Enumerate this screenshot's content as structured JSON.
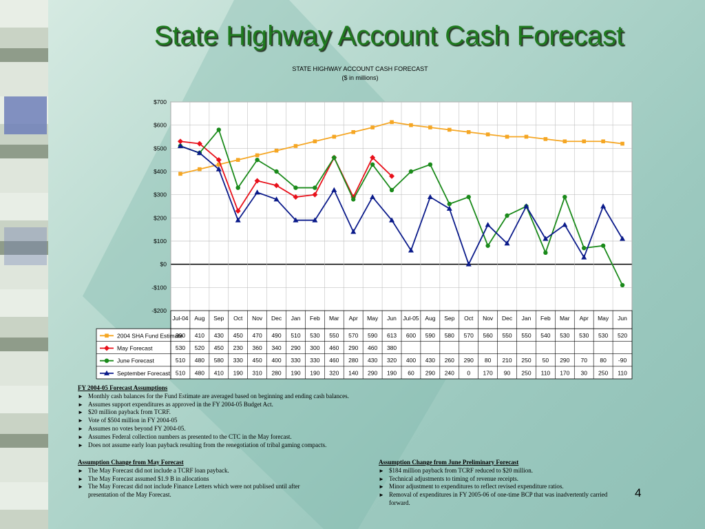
{
  "slide": {
    "title": "State Highway Account Cash Forecast",
    "page_number": "4"
  },
  "chart_data": {
    "type": "line",
    "title": "STATE HIGHWAY ACCOUNT CASH FORECAST",
    "subtitle": "($ in millions)",
    "categories": [
      "Jul-04",
      "Aug",
      "Sep",
      "Oct",
      "Nov",
      "Dec",
      "Jan",
      "Feb",
      "Mar",
      "Apr",
      "May",
      "Jun",
      "Jul-05",
      "Aug",
      "Sep",
      "Oct",
      "Nov",
      "Dec",
      "Jan",
      "Feb",
      "Mar",
      "Apr",
      "May",
      "Jun"
    ],
    "ylim": [
      -200,
      700
    ],
    "yticks": [
      -200,
      -100,
      0,
      100,
      200,
      300,
      400,
      500,
      600,
      700
    ],
    "ytick_labels": [
      "-$200",
      "-$100",
      "$0",
      "$100",
      "$200",
      "$300",
      "$400",
      "$500",
      "$600",
      "$700"
    ],
    "grid": true,
    "legend": "table-below",
    "series": [
      {
        "name": "2004 SHA Fund Estimate",
        "color": "#f5a623",
        "marker": "square",
        "values": [
          390,
          410,
          430,
          450,
          470,
          490,
          510,
          530,
          550,
          570,
          590,
          613,
          600,
          590,
          580,
          570,
          560,
          550,
          550,
          540,
          530,
          530,
          530,
          520
        ],
        "labels": [
          "390",
          "410",
          "430",
          "450",
          "470",
          "490",
          "510",
          "530",
          "550",
          "570",
          "590",
          "613",
          "600",
          "590",
          "580",
          "570",
          "560",
          "550",
          "550",
          "540",
          "530",
          "530",
          "530",
          "520"
        ]
      },
      {
        "name": "May Forecast",
        "color": "#e8101a",
        "marker": "diamond",
        "values": [
          530,
          520,
          450,
          230,
          360,
          340,
          290,
          300,
          460,
          290,
          460,
          380,
          null,
          null,
          null,
          null,
          null,
          null,
          null,
          null,
          null,
          null,
          null,
          null
        ],
        "labels": [
          "530",
          "520",
          "450",
          "230",
          "360",
          "340",
          "290",
          "300",
          "460",
          "290",
          "460",
          "380",
          "",
          "",
          "",
          "",
          "",
          "",
          "",
          "",
          "",
          "",
          "",
          ""
        ]
      },
      {
        "name": "June Forecast",
        "color": "#1a8a1a",
        "marker": "circle",
        "values": [
          510,
          480,
          580,
          330,
          450,
          400,
          330,
          330,
          460,
          280,
          430,
          320,
          400,
          430,
          260,
          290,
          80,
          210,
          250,
          50,
          290,
          70,
          80,
          -90
        ],
        "labels": [
          "510",
          "480",
          "580",
          "330",
          "450",
          "400",
          "330",
          "330",
          "460",
          "280",
          "430",
          "320",
          "400",
          "430",
          "260",
          "290",
          "80",
          "210",
          "250",
          "50",
          "290",
          "70",
          "80",
          "-90"
        ]
      },
      {
        "name": "September Forecast",
        "color": "#0a1a8a",
        "marker": "triangle",
        "values": [
          510,
          480,
          410,
          190,
          310,
          280,
          190,
          190,
          320,
          140,
          290,
          190,
          60,
          290,
          240,
          0,
          170,
          90,
          250,
          110,
          170,
          30,
          250,
          110
        ],
        "labels": [
          "510",
          "480",
          "410",
          "190",
          "310",
          "280",
          "190",
          "190",
          "320",
          "140",
          "290",
          "190",
          "60",
          "290",
          "240",
          "0",
          "170",
          "90",
          "250",
          "110",
          "170",
          "30",
          "250",
          "110"
        ]
      }
    ]
  },
  "assumptions": {
    "heading": "FY 2004-05 Forecast Assumptions",
    "items": [
      "Monthly cash balances for the Fund Estimate are averaged based on beginning and ending cash balances.",
      "Assumes support expenditures as approved in the FY 2004-05 Budget Act.",
      "$20 million payback from TCRF.",
      "Vote of $504 million in FY 2004-05",
      "Assumes no votes beyond FY 2004-05.",
      "Assumes Federal collection numbers as presented to the CTC in the May forecast.",
      "Does not assume early loan payback resulting from the renegotiation of tribal gaming compacts."
    ]
  },
  "may_changes": {
    "heading": "Assumption Change from May Forecast",
    "items": [
      "The May Forecast did not include a TCRF loan payback.",
      "The May Forecast assumed $1.9 B in allocations",
      "The May Forecast did not include Finance Letters which were not publised until after presentation of the May Forecast."
    ]
  },
  "june_changes": {
    "heading": "Assumption Change from June Preliminary Forecast",
    "items": [
      "$184 million payback from TCRF reduced to $20 million.",
      "Technical adjustments to timing of revenue receipts.",
      "Minor adjustment to expenditures to reflect revised expenditure ratios.",
      "Removal of expenditures in FY 2005-06 of one-time BCP that was inadvertently carried forward."
    ]
  }
}
